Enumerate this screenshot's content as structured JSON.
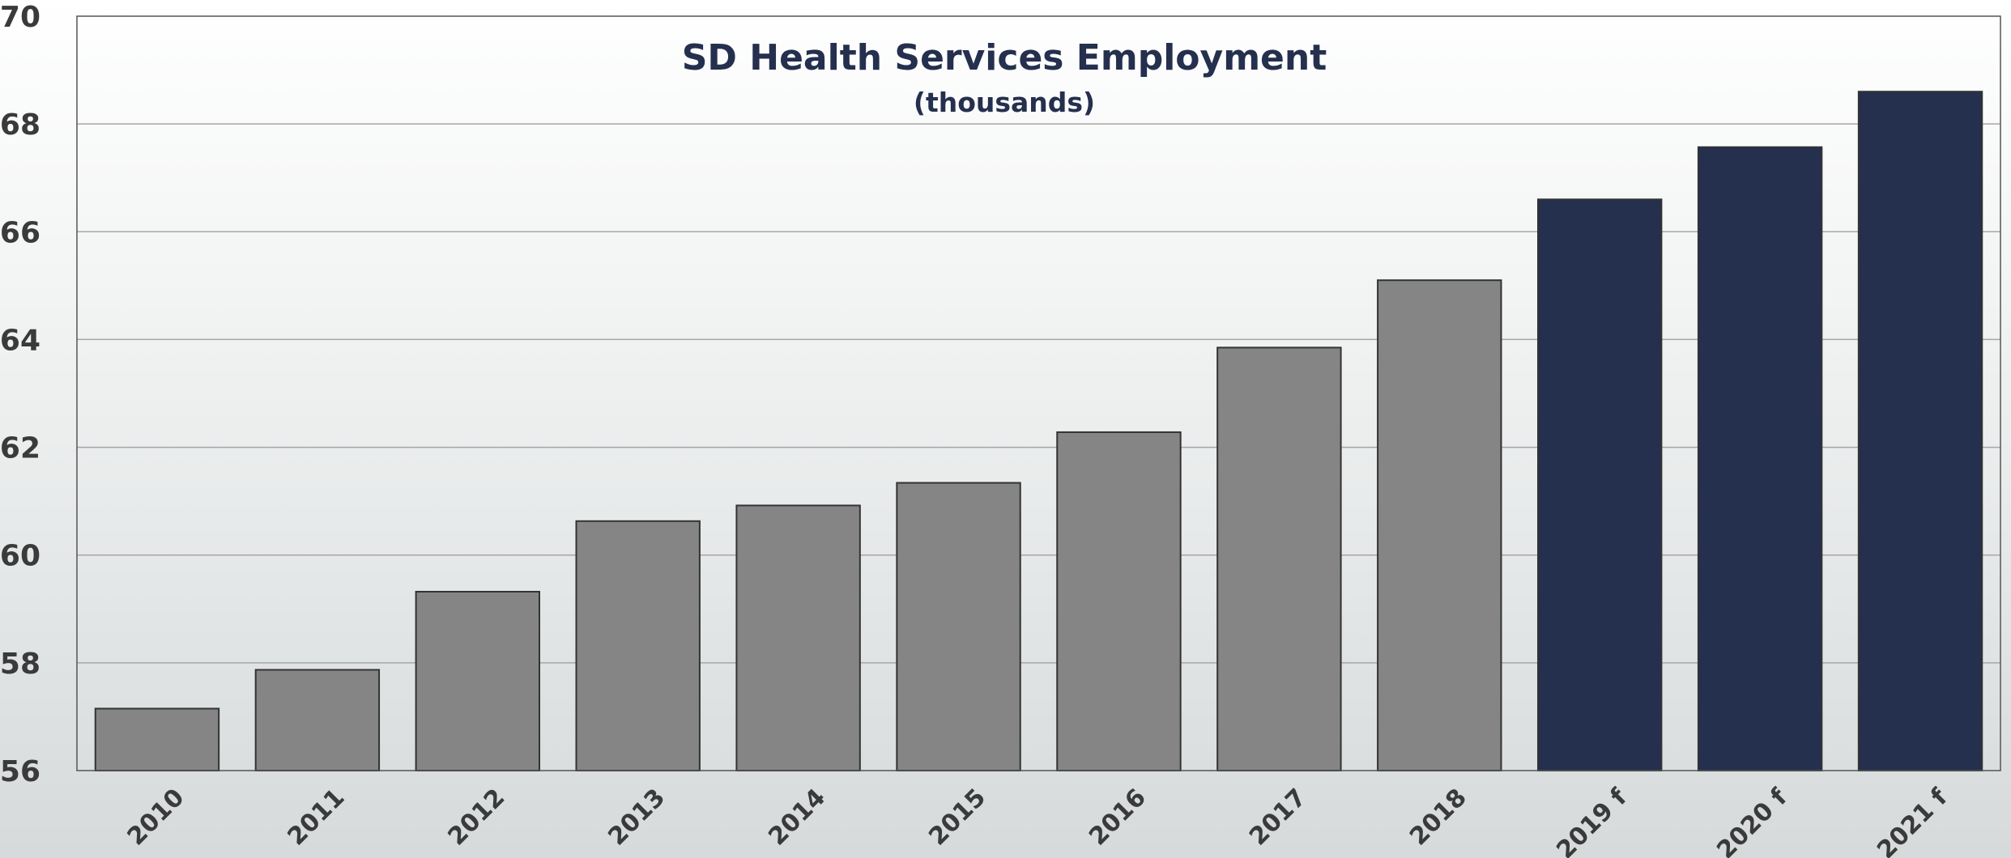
{
  "chart_data": {
    "type": "bar",
    "title": "SD Health Services Employment",
    "subtitle": "(thousands)",
    "xlabel": "",
    "ylabel": "",
    "categories": [
      "2010",
      "2011",
      "2012",
      "2013",
      "2014",
      "2015",
      "2016",
      "2017",
      "2018",
      "2019 f",
      "2020 f",
      "2021 f"
    ],
    "values": [
      57.15,
      57.87,
      59.32,
      60.63,
      60.92,
      61.34,
      62.28,
      63.85,
      65.1,
      66.6,
      67.57,
      68.6
    ],
    "forecast": [
      false,
      false,
      false,
      false,
      false,
      false,
      false,
      false,
      false,
      true,
      true,
      true
    ],
    "ylim": [
      56,
      70
    ],
    "yticks": [
      "56",
      "58",
      "60",
      "62",
      "64",
      "66",
      "68",
      "70"
    ],
    "grid": true,
    "legend": "none",
    "colors": {
      "actual": "#858585",
      "forecast": "#252f4e",
      "bar_stroke": "#333333",
      "title": "#252f4e",
      "gridline": "#a6a6a6",
      "axis": "#555555",
      "tick_text": "#3a3a3a"
    }
  }
}
